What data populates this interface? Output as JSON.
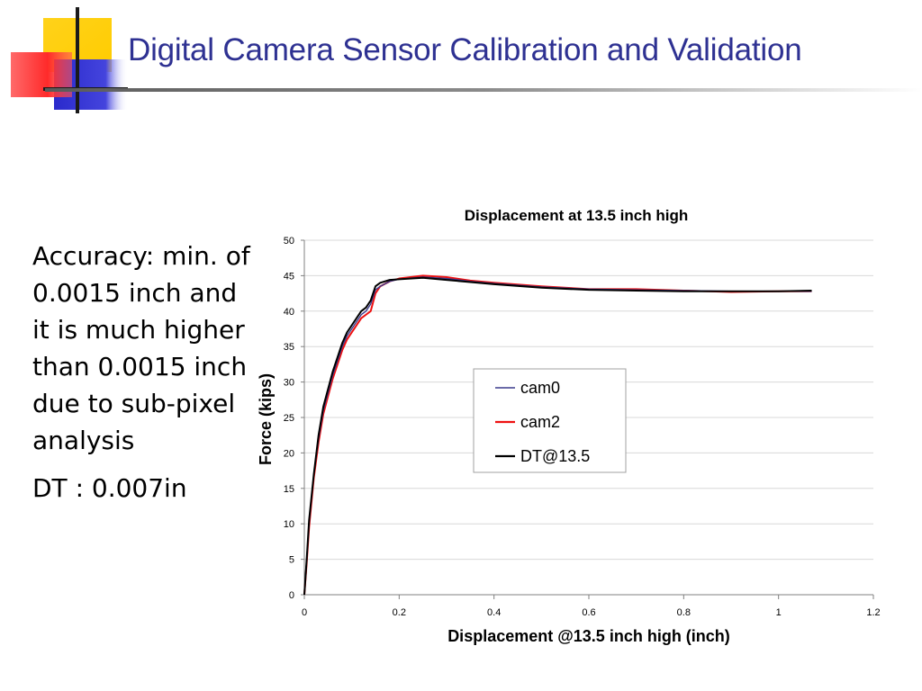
{
  "slide": {
    "title": "Digital Camera Sensor Calibration and Validation",
    "bullets": [
      "Accuracy: min. of 0.0015 inch and it is much higher than 0.0015 inch due to sub-pixel analysis",
      "DT : 0.007in"
    ],
    "colors": {
      "title": "#2e3192",
      "logo_yellow": "#ffcc00",
      "logo_red": "#ff3333",
      "logo_blue": "#3333cc"
    }
  },
  "chart_data": {
    "type": "line",
    "title": "Displacement at 13.5 inch high",
    "xlabel": "Displacement @13.5 inch high (inch)",
    "ylabel": "Force (kips)",
    "xlim": [
      0,
      1.2
    ],
    "ylim": [
      0,
      50
    ],
    "xticks": [
      "0",
      "0.2",
      "0.4",
      "0.6",
      "0.8",
      "1",
      "1.2"
    ],
    "yticks": [
      "0",
      "5",
      "10",
      "15",
      "20",
      "25",
      "30",
      "35",
      "40",
      "45",
      "50"
    ],
    "grid": "horizontal",
    "legend_position": "center-right",
    "series": [
      {
        "name": "cam0",
        "color": "#3a3a8c",
        "x": [
          0,
          0.005,
          0.01,
          0.02,
          0.03,
          0.04,
          0.05,
          0.06,
          0.07,
          0.08,
          0.09,
          0.1,
          0.11,
          0.12,
          0.13,
          0.14,
          0.15,
          0.16,
          0.18,
          0.2,
          0.25,
          0.3,
          0.35,
          0.4,
          0.5,
          0.6,
          0.7,
          0.8,
          0.9,
          1.0,
          1.07
        ],
        "y": [
          0,
          5,
          10,
          17,
          22,
          26,
          28.5,
          31,
          33,
          35,
          36.5,
          37.5,
          38.5,
          39.5,
          40,
          41,
          43,
          43.5,
          44.2,
          44.5,
          44.8,
          44.6,
          44.2,
          43.9,
          43.4,
          43.1,
          43.0,
          42.9,
          42.8,
          42.8,
          42.8
        ]
      },
      {
        "name": "cam2",
        "color": "#ee1111",
        "x": [
          0,
          0.005,
          0.01,
          0.02,
          0.03,
          0.04,
          0.05,
          0.06,
          0.07,
          0.08,
          0.09,
          0.1,
          0.11,
          0.12,
          0.13,
          0.14,
          0.15,
          0.16,
          0.18,
          0.2,
          0.25,
          0.3,
          0.35,
          0.4,
          0.5,
          0.6,
          0.7,
          0.8,
          0.9,
          1.0,
          1.07
        ],
        "y": [
          0,
          4.5,
          9.5,
          16.5,
          21.5,
          25.5,
          28,
          30.5,
          32.5,
          34.5,
          36,
          37,
          38,
          39,
          39.5,
          40,
          42.5,
          43.5,
          44.2,
          44.6,
          45,
          44.8,
          44.3,
          44.0,
          43.5,
          43.1,
          43.1,
          42.9,
          42.7,
          42.8,
          42.8
        ]
      },
      {
        "name": "DT@13.5",
        "color": "#000000",
        "x": [
          0,
          0.005,
          0.01,
          0.02,
          0.03,
          0.04,
          0.05,
          0.06,
          0.07,
          0.08,
          0.09,
          0.1,
          0.11,
          0.12,
          0.13,
          0.14,
          0.15,
          0.16,
          0.18,
          0.2,
          0.25,
          0.3,
          0.35,
          0.4,
          0.5,
          0.6,
          0.7,
          0.8,
          0.9,
          1.0,
          1.07
        ],
        "y": [
          0,
          5,
          10.5,
          17,
          22.5,
          26.5,
          29,
          31.5,
          33.5,
          35.5,
          37,
          38,
          39,
          40,
          40.5,
          41.5,
          43.5,
          44,
          44.4,
          44.5,
          44.7,
          44.4,
          44.1,
          43.8,
          43.3,
          43.0,
          42.9,
          42.8,
          42.8,
          42.8,
          42.9
        ]
      }
    ]
  }
}
